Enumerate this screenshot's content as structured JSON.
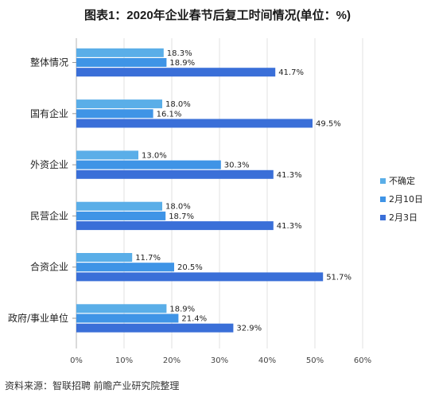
{
  "source_text": "资料来源：智联招聘 前瞻产业研究院整理",
  "chart_data": {
    "type": "bar",
    "orientation": "horizontal",
    "title": "图表1：2020年企业春节后复工时间情况(单位：%)",
    "categories": [
      "整体情况",
      "国有企业",
      "外资企业",
      "民营企业",
      "合资企业",
      "政府/事业单位"
    ],
    "series": [
      {
        "name": "不确定",
        "color": "#5aaee8",
        "values": [
          18.3,
          18.0,
          13.0,
          18.0,
          11.7,
          18.9
        ]
      },
      {
        "name": "2月10日",
        "color": "#3f94e6",
        "values": [
          18.9,
          16.1,
          30.3,
          18.7,
          20.5,
          21.4
        ]
      },
      {
        "name": "2月3日",
        "color": "#3a6fd8",
        "values": [
          41.7,
          49.5,
          41.3,
          41.3,
          51.7,
          32.9
        ]
      }
    ],
    "data_labels": [
      [
        "18.3%",
        "18.0%",
        "13.0%",
        "18.0%",
        "11.7%",
        "18.9%"
      ],
      [
        "18.9%",
        "16.1%",
        "30.3%",
        "18.7%",
        "20.5%",
        "21.4%"
      ],
      [
        "41.7%",
        "49.5%",
        "41.3%",
        "41.3%",
        "51.7%",
        "32.9%"
      ]
    ],
    "x_ticks": [
      0,
      10,
      20,
      30,
      40,
      50,
      60
    ],
    "x_tick_labels": [
      "0%",
      "10%",
      "20%",
      "30%",
      "40%",
      "50%",
      "60%"
    ],
    "xlim": [
      0,
      60
    ],
    "grid": "vertical",
    "legend_position": "right"
  }
}
